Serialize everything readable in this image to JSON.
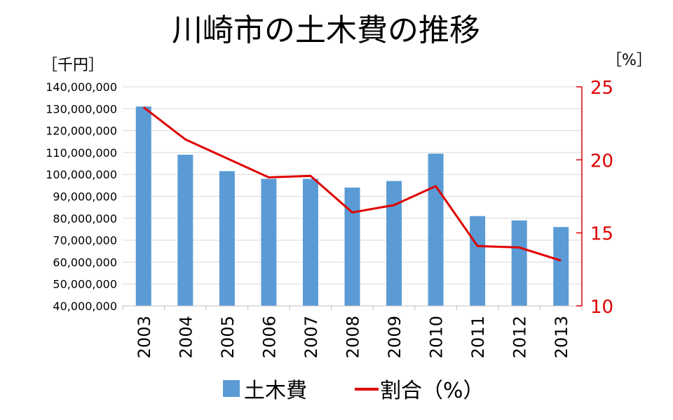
{
  "chart_data": {
    "type": "bar",
    "title": "川崎市の土木費の推移",
    "categories": [
      "2003",
      "2004",
      "2005",
      "2006",
      "2007",
      "2008",
      "2009",
      "2010",
      "2011",
      "2012",
      "2013"
    ],
    "series": [
      {
        "name": "土木費",
        "type": "bar",
        "axis": "left",
        "color": "#5b9bd5",
        "values": [
          131000000,
          109000000,
          101500000,
          98000000,
          98000000,
          94000000,
          97000000,
          109500000,
          81000000,
          79000000,
          76000000
        ]
      },
      {
        "name": "割合（%）",
        "type": "line",
        "axis": "right",
        "color": "#e00000",
        "values": [
          23.6,
          21.4,
          20.1,
          18.8,
          18.9,
          16.4,
          16.9,
          18.2,
          14.1,
          14.0,
          13.1
        ]
      }
    ],
    "y_left": {
      "unit_label": "［千円］",
      "ylim": [
        40000000,
        140000000
      ],
      "ticks": [
        "40,000,000",
        "50,000,000",
        "60,000,000",
        "70,000,000",
        "80,000,000",
        "90,000,000",
        "100,000,000",
        "110,000,000",
        "120,000,000",
        "130,000,000",
        "140,000,000"
      ]
    },
    "y_right": {
      "unit_label": "［%］",
      "ylim": [
        10,
        25
      ],
      "ticks": [
        "10",
        "15",
        "20",
        "25"
      ],
      "color": "#e00000"
    },
    "grid": true,
    "legend_position": "bottom"
  }
}
